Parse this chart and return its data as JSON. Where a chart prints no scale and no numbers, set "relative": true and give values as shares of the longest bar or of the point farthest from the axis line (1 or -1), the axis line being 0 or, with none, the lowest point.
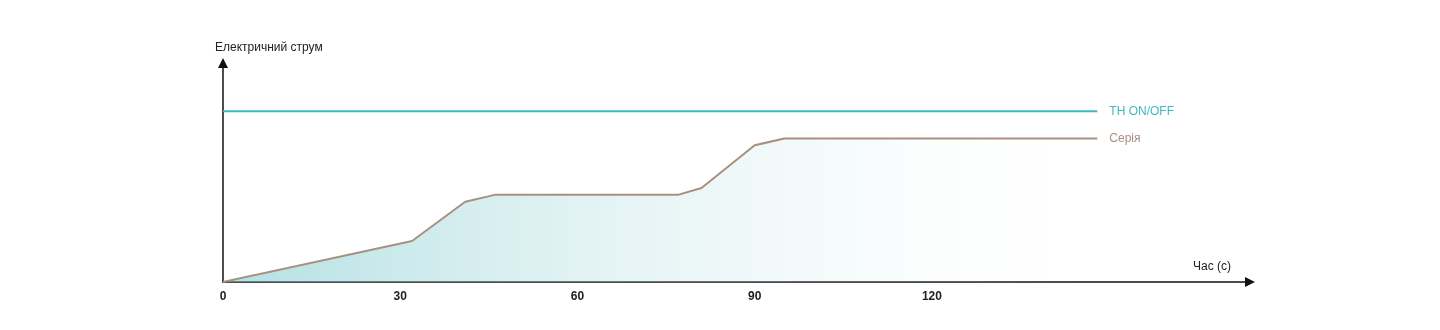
{
  "chart_data": {
    "type": "line",
    "relative": true,
    "xlabel": "Час (с)",
    "ylabel": "Електричний струм",
    "xlim": [
      0,
      173
    ],
    "xticks": [
      0,
      30,
      60,
      90,
      120
    ],
    "grid": false,
    "legend": false,
    "marker": "none",
    "series": [
      {
        "name": "TH ON/OFF",
        "color": "#3fb8bd",
        "x": [
          0,
          148
        ],
        "values": [
          1,
          1
        ]
      },
      {
        "name": "Серія",
        "type": "area",
        "color": "#a89080",
        "x": [
          0,
          32,
          41,
          46,
          77,
          81,
          90,
          95,
          148
        ],
        "values": [
          0,
          0.24,
          0.47,
          0.51,
          0.51,
          0.55,
          0.8,
          0.84,
          0.84
        ]
      }
    ]
  }
}
